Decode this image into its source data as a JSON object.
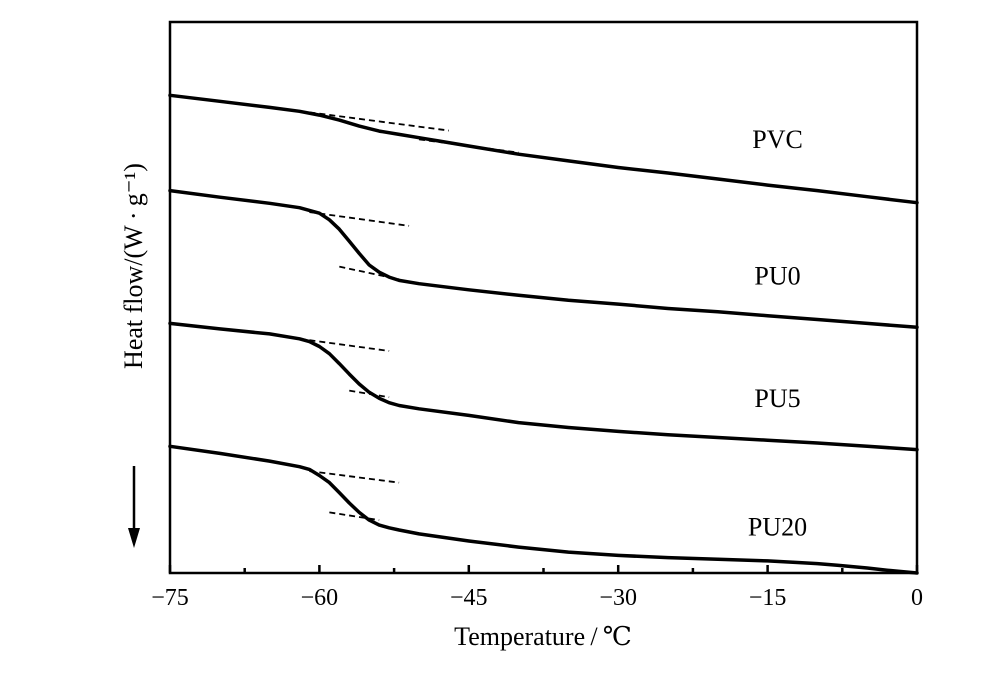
{
  "chart_data": {
    "type": "line",
    "xlabel": "Temperature / ℃",
    "ylabel": "Heat flow/(W · g⁻¹)",
    "xlim": [
      -75,
      0
    ],
    "ylim": [
      0,
      1
    ],
    "xticks": [
      -75,
      -60,
      -45,
      -30,
      -15,
      0
    ],
    "xtick_labels": [
      "−75",
      "−60",
      "−45",
      "−30",
      "−15",
      "0"
    ],
    "y_ticks_shown": false,
    "direction_arrow": "down-arrow",
    "series": [
      {
        "name": "PVC",
        "color": "#000000",
        "x": [
          -75,
          -70,
          -65,
          -62,
          -60,
          -58,
          -56,
          -54,
          -52,
          -50,
          -48,
          -45,
          -40,
          -35,
          -30,
          -25,
          -20,
          -15,
          -10,
          -5,
          0
        ],
        "y": [
          0.867,
          0.856,
          0.845,
          0.838,
          0.831,
          0.822,
          0.811,
          0.802,
          0.796,
          0.79,
          0.784,
          0.775,
          0.76,
          0.748,
          0.736,
          0.726,
          0.715,
          0.704,
          0.694,
          0.683,
          0.672
        ],
        "tangents": [
          {
            "x": [
              -61,
              -47
            ],
            "y": [
              0.836,
              0.803
            ]
          },
          {
            "x": [
              -50,
              -40
            ],
            "y": [
              0.787,
              0.763
            ]
          }
        ]
      },
      {
        "name": "PU0",
        "color": "#000000",
        "x": [
          -75,
          -70,
          -65,
          -62,
          -60,
          -59,
          -58,
          -57,
          -56,
          -55,
          -54,
          -53,
          -52,
          -50,
          -45,
          -40,
          -35,
          -30,
          -25,
          -20,
          -15,
          -10,
          -5,
          0
        ],
        "y": [
          0.694,
          0.682,
          0.671,
          0.663,
          0.653,
          0.641,
          0.624,
          0.602,
          0.58,
          0.559,
          0.546,
          0.537,
          0.531,
          0.525,
          0.514,
          0.504,
          0.495,
          0.488,
          0.48,
          0.474,
          0.467,
          0.46,
          0.453,
          0.446
        ],
        "tangents": [
          {
            "x": [
              -61,
              -51
            ],
            "y": [
              0.655,
              0.63
            ]
          },
          {
            "x": [
              -58,
              -52
            ],
            "y": [
              0.556,
              0.533
            ]
          }
        ]
      },
      {
        "name": "PU5",
        "color": "#000000",
        "x": [
          -75,
          -70,
          -65,
          -62,
          -61,
          -60,
          -59,
          -58,
          -57,
          -56,
          -55,
          -54,
          -53,
          -52,
          -50,
          -45,
          -40,
          -35,
          -30,
          -25,
          -20,
          -15,
          -10,
          -5,
          0
        ],
        "y": [
          0.453,
          0.443,
          0.434,
          0.425,
          0.42,
          0.411,
          0.398,
          0.38,
          0.361,
          0.343,
          0.328,
          0.317,
          0.309,
          0.304,
          0.298,
          0.286,
          0.273,
          0.264,
          0.257,
          0.251,
          0.246,
          0.241,
          0.236,
          0.23,
          0.224
        ],
        "tangents": [
          {
            "x": [
              -62,
              -53
            ],
            "y": [
              0.425,
              0.403
            ]
          },
          {
            "x": [
              -57,
              -53
            ],
            "y": [
              0.331,
              0.319
            ]
          }
        ]
      },
      {
        "name": "PU20",
        "color": "#000000",
        "x": [
          -75,
          -70,
          -65,
          -62,
          -61,
          -60,
          -59,
          -58,
          -57,
          -56,
          -55,
          -54,
          -53,
          -52,
          -50,
          -45,
          -40,
          -35,
          -30,
          -25,
          -20,
          -15,
          -12,
          -10,
          -8,
          -5,
          -3,
          0
        ],
        "y": [
          0.23,
          0.217,
          0.203,
          0.193,
          0.188,
          0.177,
          0.164,
          0.146,
          0.127,
          0.11,
          0.096,
          0.087,
          0.082,
          0.078,
          0.071,
          0.058,
          0.047,
          0.038,
          0.032,
          0.028,
          0.025,
          0.022,
          0.019,
          0.017,
          0.014,
          0.009,
          0.005,
          0.0
        ],
        "tangents": [
          {
            "x": [
              -61,
              -52
            ],
            "y": [
              0.185,
              0.164
            ]
          },
          {
            "x": [
              -59,
              -54
            ],
            "y": [
              0.11,
              0.096
            ]
          }
        ]
      }
    ]
  }
}
